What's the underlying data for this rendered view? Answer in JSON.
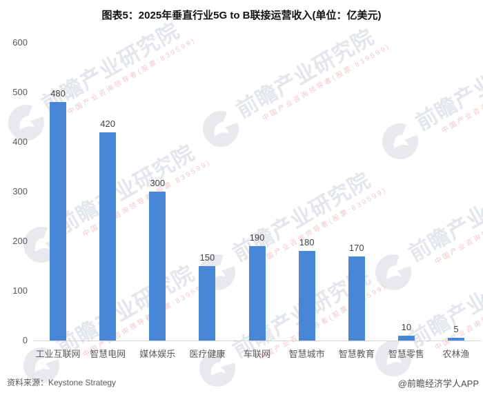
{
  "title": "图表5：2025年垂直行业5G to B联接运营收入(单位：亿美元)",
  "footer": {
    "source": "资料来源：Keystone Strategy",
    "brand": "@前瞻经济学人APP"
  },
  "watermark": {
    "brand": "前瞻产业研究院",
    "tagline": "中国产业咨询领导者(股票:839599)"
  },
  "chart_data": {
    "type": "bar",
    "title": "图表5：2025年垂直行业5G to B联接运营收入(单位：亿美元)",
    "categories": [
      "工业互联网",
      "智慧电网",
      "媒体娱乐",
      "医疗健康",
      "车联网",
      "智慧城市",
      "智慧教育",
      "智慧零售",
      "农林渔"
    ],
    "values": [
      480,
      420,
      300,
      150,
      190,
      180,
      170,
      10,
      5
    ],
    "xlabel": "",
    "ylabel": "",
    "ylim": [
      0,
      600
    ],
    "yticks": [
      0,
      100,
      200,
      300,
      400,
      500,
      600
    ],
    "grid": false,
    "legend": false,
    "value_labels": true,
    "bar_color": "#4886d8",
    "axis_line_color": "#d6d6d6"
  }
}
